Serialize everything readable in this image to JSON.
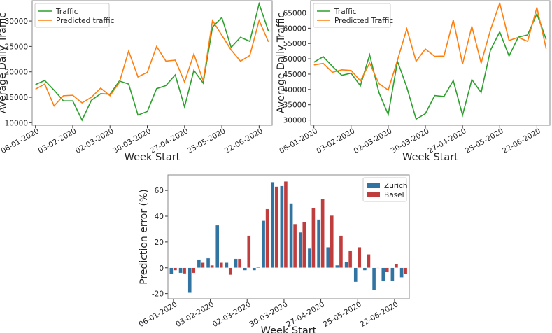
{
  "chart_data": [
    {
      "type": "line",
      "title": "",
      "xlabel": "Week Start",
      "ylabel": "Average Daily Traffic",
      "xticks": [
        "06-01-2020",
        "03-02-2020",
        "02-03-2020",
        "30-03-2020",
        "27-04-2020",
        "25-05-2020",
        "22-06-2020"
      ],
      "ylim": [
        9500,
        34000
      ],
      "yticks": [
        10000,
        15000,
        20000,
        25000,
        30000
      ],
      "legend": "top-left",
      "series": [
        {
          "name": "Traffic",
          "color": "#2ca02c",
          "values": [
            17500,
            18300,
            16400,
            14300,
            14300,
            10500,
            14400,
            15700,
            15600,
            18200,
            17600,
            11500,
            12200,
            16700,
            17300,
            19400,
            13100,
            20300,
            17800,
            28800,
            30700,
            24800,
            26800,
            26000,
            33400,
            28000
          ]
        },
        {
          "name": "Predicted traffic",
          "color": "#ff7f0e",
          "values": [
            16600,
            17600,
            13300,
            15300,
            15400,
            13900,
            15000,
            16800,
            15300,
            17900,
            24100,
            19000,
            19900,
            25000,
            22100,
            22300,
            18000,
            23500,
            18200,
            30100,
            27200,
            24300,
            22100,
            23200,
            30100,
            25900
          ]
        }
      ]
    },
    {
      "type": "line",
      "title": "",
      "xlabel": "Week Start",
      "ylabel": "Average Daily Traffic",
      "xticks": [
        "06-01-2020",
        "03-02-2020",
        "02-03-2020",
        "30-03-2020",
        "27-04-2020",
        "25-05-2020",
        "22-06-2020"
      ],
      "ylim": [
        28300,
        69000
      ],
      "yticks": [
        30000,
        35000,
        40000,
        45000,
        50000,
        55000,
        60000,
        65000
      ],
      "legend": "top-left",
      "series": [
        {
          "name": "Traffic",
          "color": "#2ca02c",
          "values": [
            48900,
            50700,
            47500,
            44600,
            45300,
            41200,
            51300,
            39000,
            31800,
            49200,
            40700,
            30300,
            32100,
            38000,
            37700,
            42900,
            31600,
            43200,
            39000,
            52800,
            58800,
            50900,
            57100,
            57800,
            64700,
            56300
          ]
        },
        {
          "name": "Predicted Traffic",
          "color": "#ff7f0e",
          "values": [
            48000,
            48500,
            45600,
            46400,
            46200,
            42800,
            48600,
            41900,
            39800,
            49600,
            59800,
            49200,
            53200,
            50800,
            50900,
            62700,
            48300,
            60600,
            48600,
            59400,
            68200,
            56000,
            57000,
            55700,
            66800,
            53300
          ]
        }
      ]
    },
    {
      "type": "bar",
      "title": "",
      "xlabel": "Week Start",
      "ylabel": "Prediction error (%)",
      "xticks": [
        "06-01-2020",
        "03-02-2020",
        "02-03-2020",
        "30-03-2020",
        "27-04-2020",
        "25-05-2020",
        "22-06-2020"
      ],
      "ylim": [
        -24,
        72
      ],
      "yticks": [
        -20,
        0,
        20,
        40,
        60
      ],
      "legend": "top-right",
      "series": [
        {
          "name": "Zürich",
          "color": "#3274a1",
          "values": [
            -5,
            -4,
            -19.5,
            6.5,
            7.5,
            33,
            4,
            7,
            -2,
            -2,
            36.5,
            66.5,
            63.5,
            50,
            27.5,
            15,
            37.5,
            16,
            2,
            4.5,
            -11,
            -2,
            -17.5,
            -10.5,
            -10,
            -7.5
          ]
        },
        {
          "name": "Basel",
          "color": "#c03d3e",
          "values": [
            -2,
            -4.5,
            -4,
            4,
            2,
            4,
            -5.5,
            7,
            25,
            0.5,
            45.5,
            63,
            67,
            34,
            35.5,
            46.5,
            53.5,
            40.5,
            25,
            13,
            16,
            10.5,
            -0.3,
            -3.5,
            3,
            -5
          ]
        }
      ]
    }
  ]
}
